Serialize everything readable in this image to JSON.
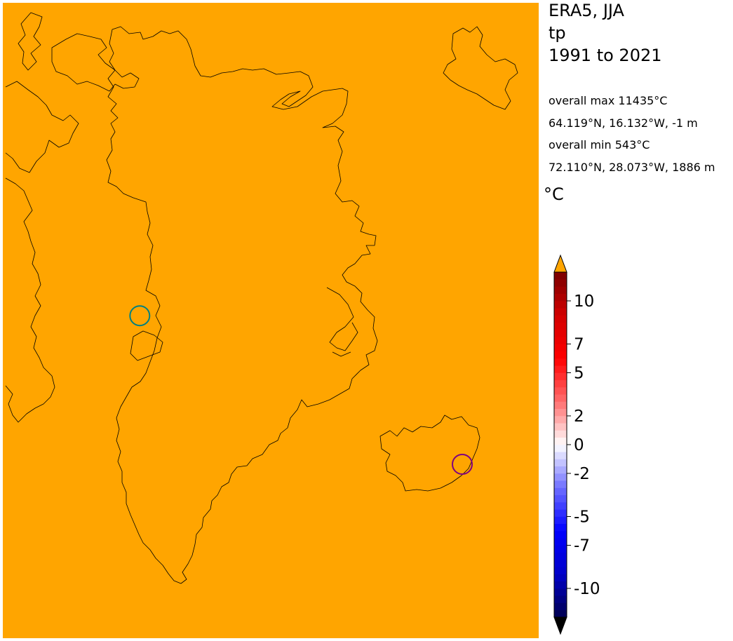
{
  "header": {
    "dataset": "ERA5, JJA",
    "variable": "tp",
    "period": "1991 to 2021"
  },
  "stats": {
    "max_label": "overall max 11435°C",
    "max_location": "64.119°N, 16.132°W, -1 m",
    "min_label": "overall min 543°C",
    "min_location": "72.110°N, 28.073°W, 1886 m"
  },
  "colorbar": {
    "unit": "°C",
    "tick_labels": [
      "10",
      "7",
      "5",
      "2",
      "0",
      "-2",
      "-5",
      "-7",
      "-10"
    ],
    "tick_values": [
      10,
      7,
      5,
      2,
      0,
      -2,
      -5,
      -7,
      -10
    ],
    "range": [
      -12,
      12
    ],
    "over_color": "#ffa500",
    "under_color": "#000000"
  },
  "map": {
    "fill_color": "#ffa500",
    "coastline_color": "#000000",
    "markers": [
      {
        "name": "min-marker",
        "lat": 72.11,
        "lon": -28.073,
        "color": "#008080"
      },
      {
        "name": "max-marker",
        "lat": 64.119,
        "lon": -16.132,
        "color": "#800080"
      }
    ]
  }
}
